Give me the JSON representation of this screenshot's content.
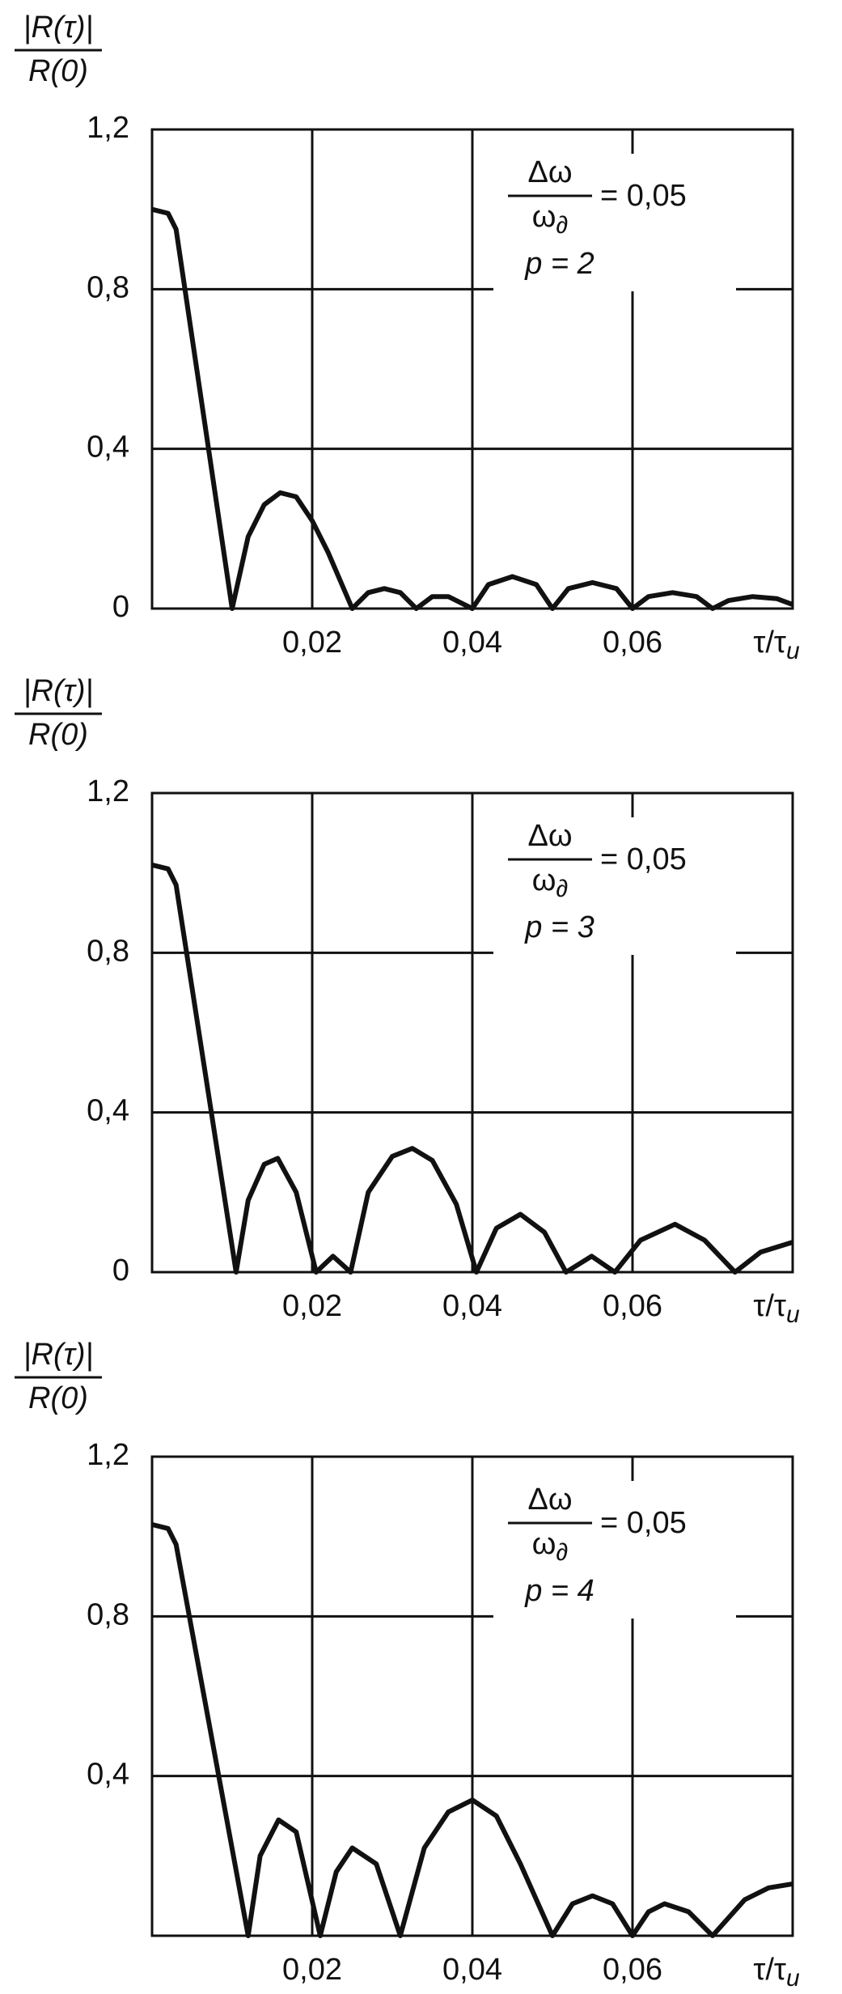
{
  "chart_data": [
    {
      "type": "line",
      "ylabel": {
        "numerator": "|R(τ)|",
        "denominator": "R(0)"
      },
      "xlabel": {
        "main": "τ/τ",
        "sub": "u"
      },
      "annotation": {
        "numerator": "Δω",
        "denominator": "ω",
        "denominator_sub": "∂",
        "equals": "= 0,05",
        "param": "p = 2"
      },
      "xlim": [
        0,
        0.08
      ],
      "ylim": [
        0,
        1.2
      ],
      "xticks": [
        {
          "value": 0.02,
          "label": "0,02"
        },
        {
          "value": 0.04,
          "label": "0,04"
        },
        {
          "value": 0.06,
          "label": "0,06"
        }
      ],
      "yticks": [
        0,
        {
          "value": 0.4,
          "label": "0,4"
        },
        {
          "value": 0.8,
          "label": "0,8"
        },
        {
          "value": 1.2,
          "label": "1,2"
        }
      ],
      "grid": true,
      "color": "#111111",
      "x": [
        0,
        0.002,
        0.003,
        0.01,
        0.012,
        0.014,
        0.016,
        0.018,
        0.02,
        0.022,
        0.025,
        0.027,
        0.029,
        0.031,
        0.033,
        0.035,
        0.037,
        0.039,
        0.04,
        0.042,
        0.045,
        0.048,
        0.05,
        0.052,
        0.055,
        0.058,
        0.06,
        0.062,
        0.065,
        0.068,
        0.07,
        0.072,
        0.075,
        0.078,
        0.08
      ],
      "values": [
        1.0,
        0.99,
        0.95,
        0,
        0.18,
        0.26,
        0.29,
        0.28,
        0.22,
        0.14,
        0,
        0.04,
        0.05,
        0.04,
        0,
        0.03,
        0.03,
        0.01,
        0,
        0.06,
        0.08,
        0.06,
        0,
        0.05,
        0.065,
        0.05,
        0,
        0.03,
        0.04,
        0.03,
        0,
        0.02,
        0.03,
        0.025,
        0.01
      ]
    },
    {
      "type": "line",
      "ylabel": {
        "numerator": "|R(τ)|",
        "denominator": "R(0)"
      },
      "xlabel": {
        "main": "τ/τ",
        "sub": "u"
      },
      "annotation": {
        "numerator": "Δω",
        "denominator": "ω",
        "denominator_sub": "∂",
        "equals": "= 0,05",
        "param": "p = 3"
      },
      "xlim": [
        0,
        0.08
      ],
      "ylim": [
        0,
        1.2
      ],
      "xticks": [
        {
          "value": 0.02,
          "label": "0,02"
        },
        {
          "value": 0.04,
          "label": "0,04"
        },
        {
          "value": 0.06,
          "label": "0,06"
        }
      ],
      "yticks": [
        0,
        {
          "value": 0.4,
          "label": "0,4"
        },
        {
          "value": 0.8,
          "label": "0,8"
        },
        {
          "value": 1.2,
          "label": "1,2"
        }
      ],
      "grid": true,
      "color": "#111111",
      "x": [
        0,
        0.002,
        0.003,
        0.0105,
        0.012,
        0.014,
        0.0157,
        0.018,
        0.0205,
        0.0226,
        0.0248,
        0.027,
        0.03,
        0.0325,
        0.035,
        0.038,
        0.0405,
        0.043,
        0.046,
        0.049,
        0.0517,
        0.0549,
        0.0578,
        0.061,
        0.0653,
        0.069,
        0.0728,
        0.076,
        0.08
      ],
      "values": [
        1.02,
        1.01,
        0.97,
        0,
        0.18,
        0.27,
        0.285,
        0.2,
        0,
        0.04,
        0,
        0.2,
        0.29,
        0.31,
        0.28,
        0.17,
        0,
        0.11,
        0.145,
        0.1,
        0,
        0.04,
        0,
        0.08,
        0.12,
        0.08,
        0,
        0.05,
        0.075
      ]
    },
    {
      "type": "line",
      "ylabel": {
        "numerator": "|R(τ)|",
        "denominator": "R(0)"
      },
      "xlabel": {
        "main": "τ/τ",
        "sub": "u"
      },
      "annotation": {
        "numerator": "Δω",
        "denominator": "ω",
        "denominator_sub": "∂",
        "equals": "= 0,05",
        "param": "p = 4"
      },
      "xlim": [
        0,
        0.08
      ],
      "ylim": [
        0,
        1.2
      ],
      "xticks": [
        {
          "value": 0.02,
          "label": "0,02"
        },
        {
          "value": 0.04,
          "label": "0,04"
        },
        {
          "value": 0.06,
          "label": "0,06"
        }
      ],
      "yticks": [
        {
          "value": 0.4,
          "label": "0,4"
        },
        {
          "value": 0.8,
          "label": "0,8"
        },
        {
          "value": 1.2,
          "label": "1,2"
        }
      ],
      "grid": true,
      "color": "#111111",
      "x": [
        0,
        0.002,
        0.003,
        0.012,
        0.0135,
        0.0158,
        0.018,
        0.021,
        0.023,
        0.025,
        0.028,
        0.031,
        0.034,
        0.037,
        0.04,
        0.043,
        0.046,
        0.05,
        0.0525,
        0.055,
        0.0575,
        0.06,
        0.062,
        0.064,
        0.067,
        0.07,
        0.074,
        0.077,
        0.08
      ],
      "values": [
        1.03,
        1.02,
        0.98,
        0,
        0.2,
        0.29,
        0.26,
        0,
        0.16,
        0.22,
        0.18,
        0,
        0.22,
        0.31,
        0.34,
        0.3,
        0.18,
        0,
        0.08,
        0.1,
        0.08,
        0,
        0.06,
        0.08,
        0.06,
        0,
        0.09,
        0.12,
        0.13
      ]
    }
  ]
}
